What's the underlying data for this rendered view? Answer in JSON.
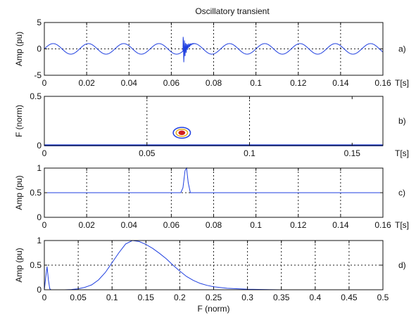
{
  "colors": {
    "line": "#1f3fe0",
    "frame": "#111111",
    "grid": "#222222",
    "contour_outer": "#1f3fe0",
    "contour_mid": "#e8b020",
    "contour_inner": "#d02020"
  },
  "chart_data": [
    {
      "id": "a",
      "type": "line",
      "title": "Oscillatory transient",
      "panel_label": "a)",
      "xlabel": "T[s]",
      "ylabel": "Amp (pu)",
      "xlim": [
        0,
        0.16
      ],
      "ylim": [
        -5,
        5
      ],
      "xticks": [
        0,
        0.02,
        0.04,
        0.06,
        0.08,
        0.1,
        0.12,
        0.14,
        0.16
      ],
      "xtick_labels": [
        "0",
        "0.02",
        "0.04",
        "0.06",
        "0.08",
        "0.1",
        "0.12",
        "0.14",
        "0.16"
      ],
      "yticks": [
        -5,
        0,
        5
      ],
      "ytick_labels": [
        "-5",
        "0",
        "5"
      ],
      "grid": true,
      "signal": {
        "frequency_hz": 60,
        "amplitude": 1,
        "transient_start_s": 0.0655,
        "transient_peak": 3.2,
        "transient_decay_s": 0.0012,
        "transient_frequency_hz": 1800
      }
    },
    {
      "id": "b",
      "type": "contour",
      "panel_label": "b)",
      "xlabel": "T[s]",
      "ylabel": "F (norm)",
      "xlim": [
        0,
        0.165
      ],
      "ylim": [
        0,
        0.5
      ],
      "xticks": [
        0,
        0.05,
        0.1,
        0.15
      ],
      "xtick_labels": [
        "0",
        "0.05",
        "0.1",
        "0.15"
      ],
      "yticks": [
        0,
        0.5
      ],
      "ytick_labels": [
        "0",
        "0.5"
      ],
      "grid": true,
      "baseline_f": 0.003,
      "blob": {
        "t": 0.067,
        "f": 0.13,
        "rings": [
          {
            "dt": 0.0042,
            "df": 0.055
          },
          {
            "dt": 0.0028,
            "df": 0.036
          },
          {
            "dt": 0.0014,
            "df": 0.018
          }
        ]
      }
    },
    {
      "id": "c",
      "type": "line",
      "panel_label": "c)",
      "xlabel": "T[s]",
      "ylabel": "Amp (pu)",
      "xlim": [
        0,
        0.16
      ],
      "ylim": [
        0,
        1
      ],
      "xticks": [
        0,
        0.02,
        0.04,
        0.06,
        0.08,
        0.1,
        0.12,
        0.14,
        0.16
      ],
      "xtick_labels": [
        "0",
        "0.02",
        "0.04",
        "0.06",
        "0.08",
        "0.1",
        "0.12",
        "0.14",
        "0.16"
      ],
      "yticks": [
        0,
        0.5,
        1
      ],
      "ytick_labels": [
        "0",
        "0.5",
        "1"
      ],
      "grid": true,
      "x": [
        0,
        0.0645,
        0.0655,
        0.0665,
        0.0672,
        0.068,
        0.069,
        0.16
      ],
      "y": [
        0.5,
        0.5,
        0.6,
        0.95,
        1.0,
        0.7,
        0.5,
        0.5
      ]
    },
    {
      "id": "d",
      "type": "line",
      "panel_label": "d)",
      "xlabel": "F (norm)",
      "ylabel": "Amp (pu)",
      "xlim": [
        0,
        0.5
      ],
      "ylim": [
        0,
        1
      ],
      "xticks": [
        0,
        0.05,
        0.1,
        0.15,
        0.2,
        0.25,
        0.3,
        0.35,
        0.4,
        0.45,
        0.5
      ],
      "xtick_labels": [
        "0",
        "0.05",
        "0.1",
        "0.15",
        "0.2",
        "0.25",
        "0.3",
        "0.35",
        "0.4",
        "0.45",
        "0.5"
      ],
      "yticks": [
        0,
        0.5,
        1
      ],
      "ytick_labels": [
        "0",
        "0.5",
        "1"
      ],
      "grid": true,
      "x": [
        0,
        0.002,
        0.004,
        0.006,
        0.008,
        0.01,
        0.02,
        0.03,
        0.04,
        0.05,
        0.06,
        0.07,
        0.08,
        0.09,
        0.1,
        0.11,
        0.12,
        0.13,
        0.14,
        0.15,
        0.16,
        0.17,
        0.18,
        0.19,
        0.2,
        0.21,
        0.22,
        0.23,
        0.24,
        0.25,
        0.27,
        0.3,
        0.35,
        0.4,
        0.45,
        0.5
      ],
      "y": [
        0,
        0.25,
        0.47,
        0.2,
        0.02,
        0,
        0,
        0,
        0.005,
        0.02,
        0.05,
        0.1,
        0.2,
        0.35,
        0.55,
        0.75,
        0.93,
        1.0,
        0.98,
        0.92,
        0.84,
        0.74,
        0.63,
        0.5,
        0.38,
        0.27,
        0.19,
        0.13,
        0.09,
        0.06,
        0.03,
        0.01,
        0,
        0,
        0,
        0
      ]
    }
  ]
}
